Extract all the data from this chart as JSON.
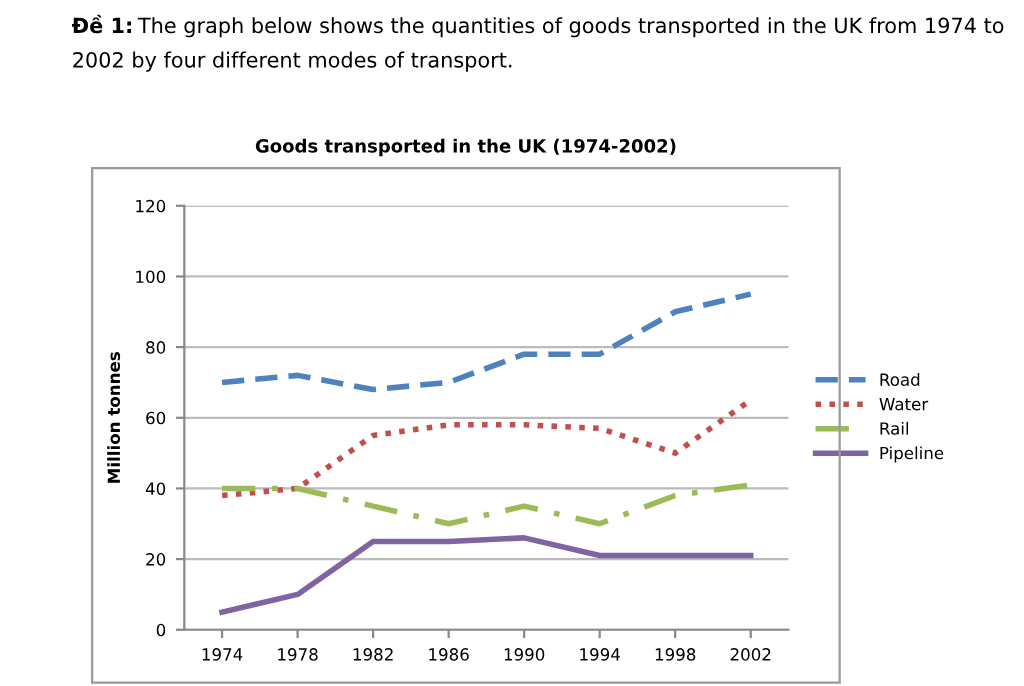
{
  "chart_data": {
    "type": "line",
    "title": "Goods transported in the UK (1974-2002)",
    "annotations": [
      "Đề 1:",
      "The graph below shows the quantities of goods transported in the UK from 1974 to 2002 by four different modes of transport."
    ],
    "ylabel": "Million tonnes",
    "categories": [
      "1974",
      "1978",
      "1982",
      "1986",
      "1990",
      "1994",
      "1998",
      "2002"
    ],
    "series": [
      {
        "name": "Road",
        "color": "#4f81bd",
        "line_style": "dashed",
        "values": [
          70,
          72,
          68,
          70,
          78,
          78,
          90,
          95
        ]
      },
      {
        "name": "Water",
        "color": "#c0504d",
        "line_style": "dotted",
        "values": [
          38,
          40,
          55,
          58,
          58,
          57,
          50,
          65
        ]
      },
      {
        "name": "Rail",
        "color": "#9bbb59",
        "line_style": "dashdot",
        "values": [
          40,
          40,
          35,
          30,
          35,
          30,
          38,
          41
        ]
      },
      {
        "name": "Pipeline",
        "color": "#8064a2",
        "line_style": "solid",
        "values": [
          5,
          10,
          25,
          25,
          26,
          21,
          21,
          21
        ]
      }
    ],
    "ylim": [
      0,
      120
    ],
    "yticks": [
      0,
      20,
      40,
      60,
      80,
      100,
      120
    ],
    "grid": "y",
    "legend": "right",
    "marker": "none"
  }
}
